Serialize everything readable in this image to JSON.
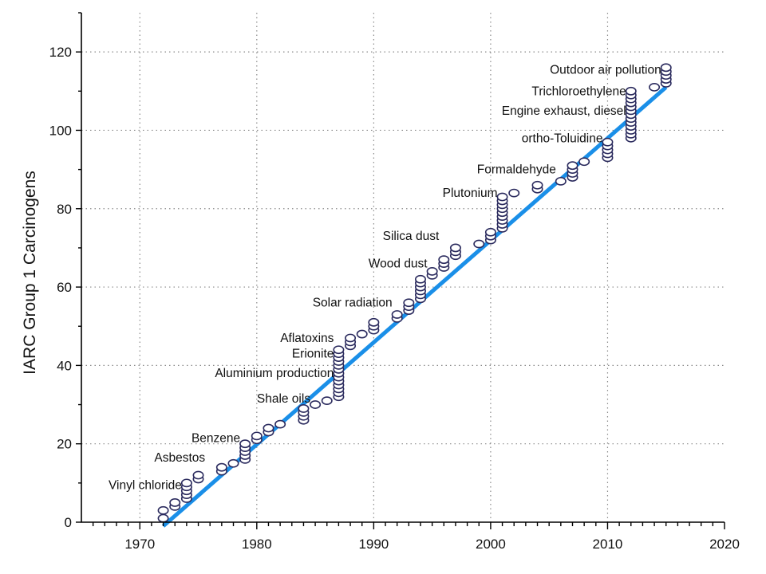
{
  "chart_data": {
    "type": "scatter",
    "title": "",
    "xlabel": "",
    "ylabel": "IARC Group 1 Carcinogens",
    "xlim": [
      1965,
      2020
    ],
    "ylim": [
      0,
      130
    ],
    "xticks": [
      1970,
      1980,
      1990,
      2000,
      2010,
      2020
    ],
    "yticks": [
      0,
      20,
      40,
      60,
      80,
      100,
      120
    ],
    "grid": true,
    "colors": {
      "points": "#2b2b5e",
      "trend": "#1a8fe8",
      "grid": "#8a8a8a"
    },
    "trend_line": {
      "x": [
        1972,
        2015
      ],
      "y": [
        -1,
        111
      ]
    },
    "points": [
      {
        "x": 1972,
        "y": [
          1,
          3
        ]
      },
      {
        "x": 1973,
        "y": [
          4,
          5
        ]
      },
      {
        "x": 1974,
        "y": [
          6,
          7,
          8,
          9,
          10
        ]
      },
      {
        "x": 1975,
        "y": [
          11,
          12
        ]
      },
      {
        "x": 1977,
        "y": [
          13,
          14
        ]
      },
      {
        "x": 1978,
        "y": [
          15
        ]
      },
      {
        "x": 1979,
        "y": [
          16,
          17,
          18,
          19,
          20
        ]
      },
      {
        "x": 1980,
        "y": [
          21,
          22
        ]
      },
      {
        "x": 1981,
        "y": [
          23,
          24
        ]
      },
      {
        "x": 1982,
        "y": [
          25
        ]
      },
      {
        "x": 1984,
        "y": [
          26,
          27,
          28,
          29
        ]
      },
      {
        "x": 1985,
        "y": [
          30
        ]
      },
      {
        "x": 1986,
        "y": [
          31
        ]
      },
      {
        "x": 1987,
        "y": [
          32,
          33,
          34,
          35,
          36,
          37,
          38,
          39,
          40,
          41,
          42,
          43,
          44
        ]
      },
      {
        "x": 1988,
        "y": [
          45,
          46,
          47
        ]
      },
      {
        "x": 1989,
        "y": [
          48
        ]
      },
      {
        "x": 1990,
        "y": [
          49,
          50,
          51
        ]
      },
      {
        "x": 1992,
        "y": [
          52,
          53
        ]
      },
      {
        "x": 1993,
        "y": [
          54,
          55,
          56
        ]
      },
      {
        "x": 1994,
        "y": [
          57,
          58,
          59,
          60,
          61,
          62
        ]
      },
      {
        "x": 1995,
        "y": [
          63,
          64
        ]
      },
      {
        "x": 1996,
        "y": [
          65,
          66,
          67
        ]
      },
      {
        "x": 1997,
        "y": [
          68,
          69,
          70
        ]
      },
      {
        "x": 1999,
        "y": [
          71
        ]
      },
      {
        "x": 2000,
        "y": [
          72,
          73,
          74
        ]
      },
      {
        "x": 2001,
        "y": [
          75,
          76,
          77,
          78,
          79,
          80,
          81,
          82,
          83
        ]
      },
      {
        "x": 2002,
        "y": [
          84
        ]
      },
      {
        "x": 2004,
        "y": [
          85,
          86
        ]
      },
      {
        "x": 2006,
        "y": [
          87
        ]
      },
      {
        "x": 2007,
        "y": [
          88,
          89,
          90,
          91
        ]
      },
      {
        "x": 2008,
        "y": [
          92
        ]
      },
      {
        "x": 2010,
        "y": [
          93,
          94,
          95,
          96,
          97
        ]
      },
      {
        "x": 2012,
        "y": [
          98,
          99,
          100,
          101,
          102,
          103,
          104,
          105,
          106,
          107,
          108,
          109,
          110
        ]
      },
      {
        "x": 2014,
        "y": [
          111
        ]
      },
      {
        "x": 2015,
        "y": [
          112,
          113,
          114,
          115,
          116
        ]
      }
    ],
    "annotations": [
      {
        "text": "Vinyl chloride",
        "x": 1974,
        "y": 9.5
      },
      {
        "text": "Asbestos",
        "x": 1976,
        "y": 16.5
      },
      {
        "text": "Benzene",
        "x": 1979,
        "y": 21.5
      },
      {
        "text": "Shale oils",
        "x": 1985,
        "y": 31.5
      },
      {
        "text": "Aluminium production",
        "x": 1987,
        "y": 38
      },
      {
        "text": "Erionite",
        "x": 1987,
        "y": 43
      },
      {
        "text": "Aflatoxins",
        "x": 1987,
        "y": 47
      },
      {
        "text": "Solar radiation",
        "x": 1992,
        "y": 56
      },
      {
        "text": "Wood dust",
        "x": 1995,
        "y": 66
      },
      {
        "text": "Silica dust",
        "x": 1996,
        "y": 73
      },
      {
        "text": "Plutonium",
        "x": 2001,
        "y": 84
      },
      {
        "text": "Formaldehyde",
        "x": 2006,
        "y": 90
      },
      {
        "text": "ortho-Toluidine",
        "x": 2010,
        "y": 98
      },
      {
        "text": "Engine exhaust, diesel",
        "x": 2012,
        "y": 105
      },
      {
        "text": "Trichloroethylene",
        "x": 2012,
        "y": 110
      },
      {
        "text": "Outdoor air pollution",
        "x": 2015,
        "y": 115.5
      }
    ]
  }
}
